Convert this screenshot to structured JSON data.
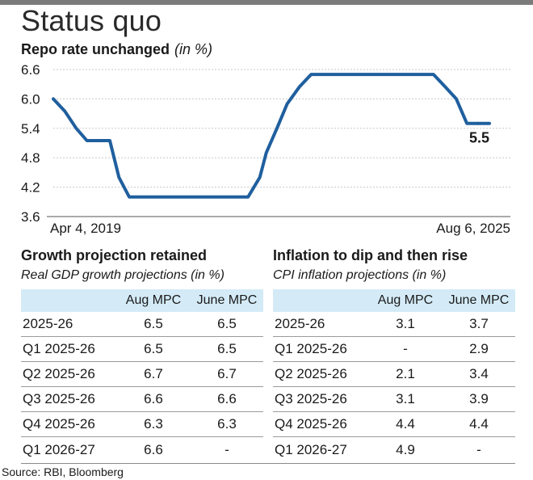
{
  "header": {
    "title": "Status quo"
  },
  "chart_data": {
    "type": "line",
    "title": "Repo rate unchanged",
    "unit": "(in %)",
    "ylim": [
      3.6,
      6.6
    ],
    "yticks": [
      "6.6",
      "6.0",
      "5.4",
      "4.8",
      "4.2",
      "3.6"
    ],
    "x_labels": [
      "Apr 4, 2019",
      "Aug 6, 2025"
    ],
    "end_label": "5.5",
    "grid": true,
    "color": "#1f5f9e",
    "series": [
      {
        "x": [
          "2019-04-04",
          "2019-06-06",
          "2019-08-07",
          "2019-10-04",
          "2019-12-05",
          "2020-02-06",
          "2020-03-27",
          "2020-05-22",
          "2020-08-06",
          "2021-04-07",
          "2022-03-01",
          "2022-05-04",
          "2022-06-08",
          "2022-08-05",
          "2022-09-30",
          "2022-12-07",
          "2023-02-08",
          "2023-06-01",
          "2024-06-01",
          "2024-12-06",
          "2025-02-07",
          "2025-04-09",
          "2025-06-06",
          "2025-08-06"
        ],
        "values": [
          6.0,
          5.75,
          5.4,
          5.15,
          5.15,
          5.15,
          4.4,
          4.0,
          4.0,
          4.0,
          4.0,
          4.4,
          4.9,
          5.4,
          5.9,
          6.25,
          6.5,
          6.5,
          6.5,
          6.5,
          6.25,
          6.0,
          5.5,
          5.5
        ]
      }
    ]
  },
  "growth_table": {
    "title": "Growth projection retained",
    "subtitle": "Real GDP growth projections (in %)",
    "columns": [
      "Aug MPC",
      "June MPC"
    ],
    "rows": [
      {
        "label": "2025-26",
        "aug": "6.5",
        "june": "6.5"
      },
      {
        "label": "Q1 2025-26",
        "aug": "6.5",
        "june": "6.5"
      },
      {
        "label": "Q2 2025-26",
        "aug": "6.7",
        "june": "6.7"
      },
      {
        "label": "Q3 2025-26",
        "aug": "6.6",
        "june": "6.6"
      },
      {
        "label": "Q4 2025-26",
        "aug": "6.3",
        "june": "6.3"
      },
      {
        "label": "Q1 2026-27",
        "aug": "6.6",
        "june": "-"
      }
    ]
  },
  "inflation_table": {
    "title": "Inflation to dip and then rise",
    "subtitle": "CPI inflation projections (in %)",
    "columns": [
      "Aug MPC",
      "June MPC"
    ],
    "rows": [
      {
        "label": "2025-26",
        "aug": "3.1",
        "june": "3.7"
      },
      {
        "label": "Q1 2025-26",
        "aug": "-",
        "june": "2.9"
      },
      {
        "label": "Q2 2025-26",
        "aug": "2.1",
        "june": "3.4"
      },
      {
        "label": "Q3 2025-26",
        "aug": "3.1",
        "june": "3.9"
      },
      {
        "label": "Q4 2025-26",
        "aug": "4.4",
        "june": "4.4"
      },
      {
        "label": "Q1 2026-27",
        "aug": "4.9",
        "june": "-"
      }
    ]
  },
  "source": "Source: RBI, Bloomberg"
}
